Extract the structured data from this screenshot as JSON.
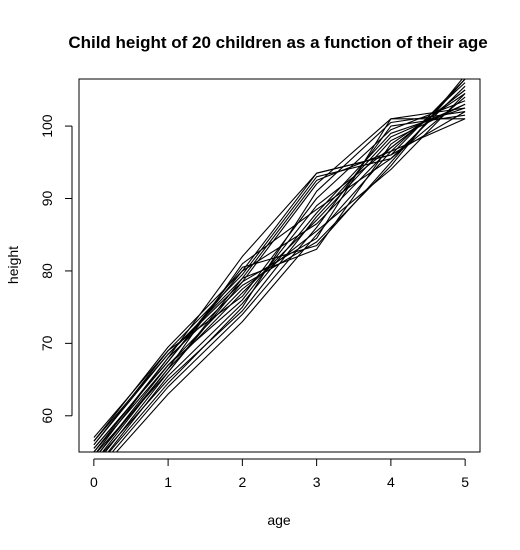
{
  "chart_data": {
    "type": "line",
    "title": "Child height of 20 children as a function of their age",
    "xlabel": "age",
    "ylabel": "height",
    "x": [
      0,
      1,
      2,
      3,
      4,
      5
    ],
    "xlim": [
      -0.2,
      5.2
    ],
    "ylim": [
      55,
      106.5
    ],
    "x_ticks": [
      "0",
      "1",
      "2",
      "3",
      "4",
      "5"
    ],
    "y_ticks": [
      "60",
      "70",
      "80",
      "90",
      "100"
    ],
    "y_tick_values": [
      60,
      70,
      80,
      90,
      100
    ],
    "x_tick_values": [
      0,
      1,
      2,
      3,
      4,
      5
    ],
    "grid": false,
    "series": [
      {
        "values": [
          56.5,
          69.5,
          80.0,
          93.5,
          96.0,
          106.5
        ]
      },
      {
        "values": [
          57.0,
          69.0,
          79.5,
          93.0,
          95.5,
          104.0
        ]
      },
      {
        "values": [
          56.0,
          68.5,
          78.5,
          92.0,
          101.0,
          101.0
        ]
      },
      {
        "values": [
          55.0,
          68.0,
          82.0,
          93.5,
          96.0,
          102.0
        ]
      },
      {
        "values": [
          54.0,
          67.0,
          76.0,
          89.0,
          97.0,
          105.0
        ]
      },
      {
        "values": [
          53.5,
          66.5,
          77.0,
          87.0,
          98.0,
          103.0
        ]
      },
      {
        "values": [
          52.5,
          65.5,
          75.5,
          88.0,
          99.0,
          102.5
        ]
      },
      {
        "values": [
          52.0,
          64.0,
          74.0,
          86.0,
          100.0,
          101.5
        ]
      },
      {
        "values": [
          51.5,
          63.0,
          73.0,
          85.0,
          96.5,
          106.0
        ]
      },
      {
        "values": [
          54.5,
          68.0,
          78.0,
          84.0,
          94.5,
          107.0
        ]
      },
      {
        "values": [
          55.5,
          67.5,
          80.5,
          83.5,
          95.0,
          106.5
        ]
      },
      {
        "values": [
          53.0,
          66.0,
          79.0,
          83.0,
          97.5,
          104.5
        ]
      },
      {
        "values": [
          56.0,
          69.0,
          76.5,
          90.0,
          99.5,
          103.5
        ]
      },
      {
        "values": [
          52.5,
          64.5,
          75.0,
          91.0,
          100.5,
          102.0
        ]
      },
      {
        "values": [
          54.0,
          66.5,
          81.0,
          88.5,
          95.5,
          105.5
        ]
      },
      {
        "values": [
          55.0,
          67.0,
          77.5,
          85.5,
          94.0,
          104.5
        ]
      },
      {
        "values": [
          53.5,
          65.0,
          74.5,
          87.5,
          98.5,
          103.0
        ]
      },
      {
        "values": [
          56.5,
          68.5,
          79.0,
          92.5,
          96.5,
          101.0
        ]
      },
      {
        "values": [
          54.5,
          66.0,
          78.5,
          84.5,
          101.0,
          102.5
        ]
      },
      {
        "values": [
          55.5,
          67.5,
          80.0,
          86.5,
          97.0,
          105.0
        ]
      }
    ]
  }
}
